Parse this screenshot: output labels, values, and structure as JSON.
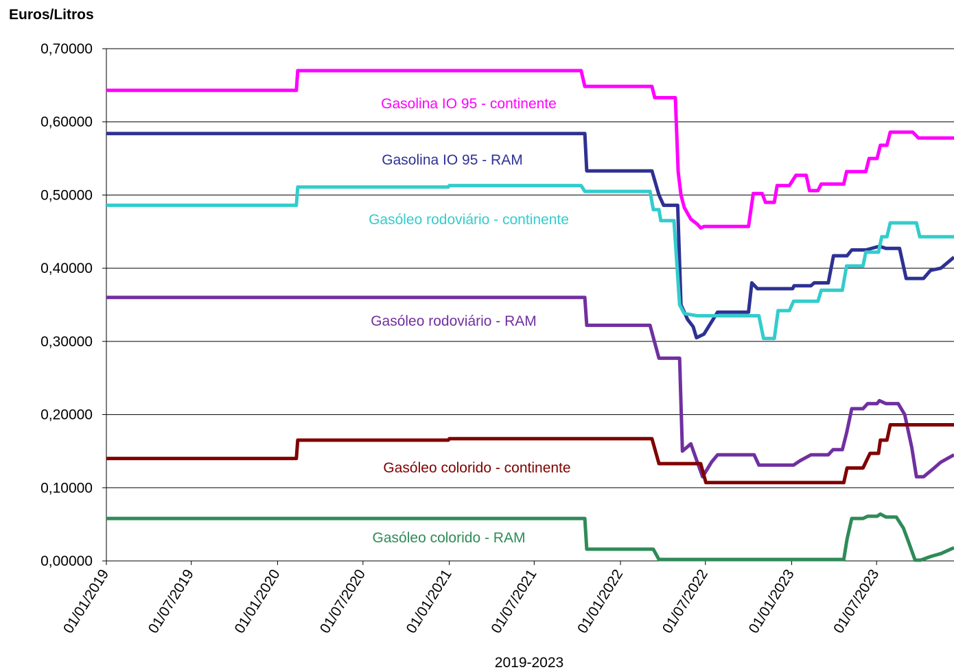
{
  "chart_data": {
    "type": "line",
    "title": "Euros/Litros",
    "x_label": "2019-2023",
    "xlim": [
      "2019-01-01",
      "2023-12-13"
    ],
    "ylim": [
      0,
      0.7
    ],
    "yticks": [
      {
        "value": 0,
        "label": "0,00000"
      },
      {
        "value": 0.1,
        "label": "0,10000"
      },
      {
        "value": 0.2,
        "label": "0,20000"
      },
      {
        "value": 0.3,
        "label": "0,30000"
      },
      {
        "value": 0.4,
        "label": "0,40000"
      },
      {
        "value": 0.5,
        "label": "0,50000"
      },
      {
        "value": 0.6,
        "label": "0,60000"
      },
      {
        "value": 0.7,
        "label": "0,70000"
      }
    ],
    "xticks": [
      {
        "value": "2019-01-01",
        "label": "01/01/2019"
      },
      {
        "value": "2019-07-01",
        "label": "01/07/2019"
      },
      {
        "value": "2020-01-01",
        "label": "01/01/2020"
      },
      {
        "value": "2020-07-01",
        "label": "01/07/2020"
      },
      {
        "value": "2021-01-01",
        "label": "01/01/2021"
      },
      {
        "value": "2021-07-01",
        "label": "01/07/2021"
      },
      {
        "value": "2022-01-01",
        "label": "01/01/2022"
      },
      {
        "value": "2022-07-01",
        "label": "01/07/2022"
      },
      {
        "value": "2023-01-01",
        "label": "01/01/2023"
      },
      {
        "value": "2023-07-01",
        "label": "01/07/2023"
      }
    ],
    "grid": true,
    "series": [
      {
        "name": "Gasolina IO 95 - continente",
        "color": "#ff00ff",
        "x": [
          "2019-01-01",
          "2020-02-10",
          "2020-02-13",
          "2021-10-09",
          "2021-10-17",
          "2022-03-09",
          "2022-03-15",
          "2022-04-28",
          "2022-05-04",
          "2022-05-10",
          "2022-05-17",
          "2022-05-31",
          "2022-06-14",
          "2022-06-21",
          "2022-06-28",
          "2022-10-01",
          "2022-10-11",
          "2022-10-30",
          "2022-11-06",
          "2022-11-25",
          "2022-12-01",
          "2022-12-27",
          "2023-01-10",
          "2023-02-01",
          "2023-02-08",
          "2023-02-26",
          "2023-03-05",
          "2023-04-22",
          "2023-04-28",
          "2023-06-08",
          "2023-06-15",
          "2023-07-02",
          "2023-07-09",
          "2023-07-23",
          "2023-07-30",
          "2023-09-16",
          "2023-09-28",
          "2023-12-13"
        ],
        "values": [
          0.643,
          0.643,
          0.67,
          0.67,
          0.6485,
          0.6485,
          0.633,
          0.633,
          0.532,
          0.5,
          0.483,
          0.467,
          0.46,
          0.455,
          0.457,
          0.457,
          0.502,
          0.502,
          0.49,
          0.49,
          0.513,
          0.513,
          0.527,
          0.527,
          0.506,
          0.506,
          0.515,
          0.515,
          0.532,
          0.532,
          0.55,
          0.55,
          0.568,
          0.568,
          0.586,
          0.586,
          0.578,
          0.578
        ]
      },
      {
        "name": "Gasolina IO 95 - RAM",
        "color": "#2e3192",
        "x": [
          "2019-01-01",
          "2021-10-17",
          "2021-10-21",
          "2022-03-09",
          "2022-03-24",
          "2022-04-03",
          "2022-05-03",
          "2022-05-10",
          "2022-05-24",
          "2022-06-05",
          "2022-06-12",
          "2022-06-28",
          "2022-07-27",
          "2022-10-01",
          "2022-10-08",
          "2022-10-20",
          "2023-01-03",
          "2023-01-06",
          "2023-02-11",
          "2023-02-18",
          "2023-03-20",
          "2023-03-31",
          "2023-04-29",
          "2023-05-09",
          "2023-06-08",
          "2023-07-07",
          "2023-07-21",
          "2023-08-19",
          "2023-09-02",
          "2023-10-09",
          "2023-10-24",
          "2023-11-15",
          "2023-12-13"
        ],
        "values": [
          0.584,
          0.584,
          0.533,
          0.533,
          0.5,
          0.486,
          0.486,
          0.35,
          0.33,
          0.32,
          0.305,
          0.31,
          0.34,
          0.34,
          0.38,
          0.372,
          0.372,
          0.376,
          0.376,
          0.38,
          0.38,
          0.417,
          0.417,
          0.425,
          0.425,
          0.43,
          0.427,
          0.427,
          0.386,
          0.386,
          0.397,
          0.4,
          0.415
        ]
      },
      {
        "name": "Gasóleo rodoviário - continente",
        "color": "#33cccc",
        "x": [
          "2019-01-01",
          "2020-02-10",
          "2020-02-13",
          "2020-12-30",
          "2021-01-01",
          "2021-10-09",
          "2021-10-17",
          "2022-03-05",
          "2022-03-12",
          "2022-03-24",
          "2022-03-28",
          "2022-04-25",
          "2022-05-07",
          "2022-05-17",
          "2022-06-14",
          "2022-10-23",
          "2022-11-02",
          "2022-11-25",
          "2022-12-03",
          "2022-12-27",
          "2023-01-05",
          "2023-02-26",
          "2023-03-05",
          "2023-04-19",
          "2023-04-28",
          "2023-06-02",
          "2023-06-08",
          "2023-07-05",
          "2023-07-12",
          "2023-07-23",
          "2023-07-30",
          "2023-09-24",
          "2023-10-01",
          "2023-12-13"
        ],
        "values": [
          0.486,
          0.486,
          0.511,
          0.511,
          0.513,
          0.513,
          0.505,
          0.505,
          0.48,
          0.48,
          0.465,
          0.465,
          0.35,
          0.338,
          0.335,
          0.335,
          0.304,
          0.304,
          0.342,
          0.342,
          0.355,
          0.355,
          0.37,
          0.37,
          0.403,
          0.403,
          0.422,
          0.422,
          0.443,
          0.443,
          0.462,
          0.462,
          0.443,
          0.443
        ]
      },
      {
        "name": "Gasóleo rodoviário - RAM",
        "color": "#7030a0",
        "x": [
          "2019-01-01",
          "2021-10-17",
          "2021-10-21",
          "2022-03-05",
          "2022-03-24",
          "2022-05-07",
          "2022-05-13",
          "2022-05-31",
          "2022-06-11",
          "2022-06-25",
          "2022-07-14",
          "2022-07-27",
          "2022-10-13",
          "2022-10-23",
          "2023-01-05",
          "2023-01-19",
          "2023-02-11",
          "2023-03-20",
          "2023-03-30",
          "2023-04-19",
          "2023-04-28",
          "2023-05-09",
          "2023-06-02",
          "2023-06-12",
          "2023-07-02",
          "2023-07-07",
          "2023-07-21",
          "2023-08-16",
          "2023-08-30",
          "2023-09-14",
          "2023-09-24",
          "2023-10-09",
          "2023-10-28",
          "2023-11-15",
          "2023-12-13"
        ],
        "values": [
          0.36,
          0.36,
          0.322,
          0.322,
          0.277,
          0.277,
          0.15,
          0.16,
          0.14,
          0.115,
          0.135,
          0.145,
          0.145,
          0.131,
          0.131,
          0.137,
          0.145,
          0.145,
          0.152,
          0.152,
          0.175,
          0.208,
          0.208,
          0.215,
          0.215,
          0.219,
          0.215,
          0.215,
          0.2,
          0.155,
          0.115,
          0.115,
          0.125,
          0.135,
          0.145
        ]
      },
      {
        "name": "Gasóleo colorido - continente",
        "color": "#800000",
        "x": [
          "2019-01-01",
          "2020-02-10",
          "2020-02-13",
          "2020-12-30",
          "2021-01-01",
          "2022-03-09",
          "2022-03-24",
          "2022-06-21",
          "2022-07-02",
          "2023-04-22",
          "2023-04-29",
          "2023-06-02",
          "2023-06-17",
          "2023-07-05",
          "2023-07-09",
          "2023-07-23",
          "2023-07-30",
          "2023-12-13"
        ],
        "values": [
          0.14,
          0.14,
          0.165,
          0.165,
          0.167,
          0.167,
          0.133,
          0.133,
          0.107,
          0.107,
          0.127,
          0.127,
          0.147,
          0.147,
          0.165,
          0.165,
          0.186,
          0.186
        ]
      },
      {
        "name": "Gasóleo colorido - RAM",
        "color": "#2e8b57",
        "x": [
          "2019-01-01",
          "2021-10-17",
          "2021-10-21",
          "2022-03-12",
          "2022-03-24",
          "2023-04-22",
          "2023-04-29",
          "2023-05-09",
          "2023-06-02",
          "2023-06-12",
          "2023-07-02",
          "2023-07-09",
          "2023-07-21",
          "2023-08-12",
          "2023-08-27",
          "2023-09-06",
          "2023-09-21",
          "2023-10-03",
          "2023-10-24",
          "2023-11-15",
          "2023-12-13"
        ],
        "values": [
          0.058,
          0.058,
          0.016,
          0.016,
          0.002,
          0.002,
          0.03,
          0.058,
          0.058,
          0.061,
          0.061,
          0.064,
          0.06,
          0.06,
          0.045,
          0.028,
          0.001,
          0.001,
          0.006,
          0.01,
          0.018
        ]
      }
    ]
  }
}
